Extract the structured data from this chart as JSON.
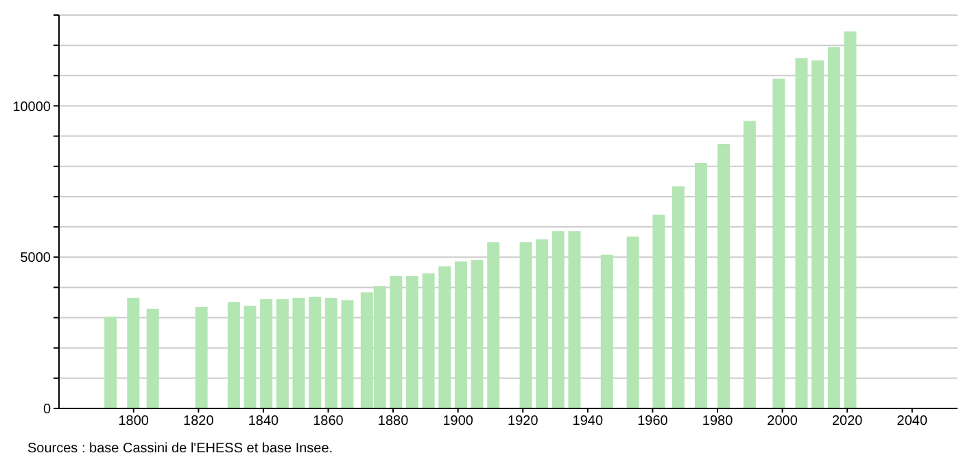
{
  "chart_data": {
    "type": "bar",
    "x": [
      1793,
      1800,
      1806,
      1821,
      1831,
      1836,
      1841,
      1846,
      1851,
      1856,
      1861,
      1866,
      1872,
      1876,
      1881,
      1886,
      1891,
      1896,
      1901,
      1906,
      1911,
      1921,
      1926,
      1931,
      1936,
      1946,
      1954,
      1962,
      1968,
      1975,
      1982,
      1990,
      1999,
      2006,
      2011,
      2016,
      2021
    ],
    "values": [
      3030,
      3650,
      3290,
      3350,
      3510,
      3390,
      3620,
      3620,
      3650,
      3690,
      3650,
      3570,
      3840,
      4050,
      4370,
      4370,
      4460,
      4700,
      4860,
      4910,
      5500,
      5500,
      5590,
      5860,
      5860,
      5080,
      5680,
      6400,
      7340,
      8110,
      8740,
      9500,
      10900,
      11580,
      11500,
      11940,
      12460
    ],
    "color": "#b3e6b3",
    "xlim": [
      1777,
      2054
    ],
    "xticks": [
      1800,
      1820,
      1840,
      1860,
      1880,
      1900,
      1920,
      1940,
      1960,
      1980,
      2000,
      2020,
      2040
    ],
    "ylim": [
      0,
      13000
    ],
    "yticks": [
      0,
      {
        "value": 1000,
        "label": null
      },
      {
        "value": 2000,
        "label": null
      },
      {
        "value": 3000,
        "label": null
      },
      {
        "value": 4000,
        "label": null
      },
      5000,
      {
        "value": 6000,
        "label": null
      },
      {
        "value": 7000,
        "label": null
      },
      {
        "value": 8000,
        "label": null
      },
      {
        "value": 9000,
        "label": null
      },
      10000,
      {
        "value": 11000,
        "label": null
      },
      {
        "value": 12000,
        "label": null
      },
      {
        "value": 13000,
        "label": null
      }
    ],
    "grid": "y",
    "annotations": [
      "Sources : base Cassini de l'EHESS et base Insee."
    ]
  }
}
